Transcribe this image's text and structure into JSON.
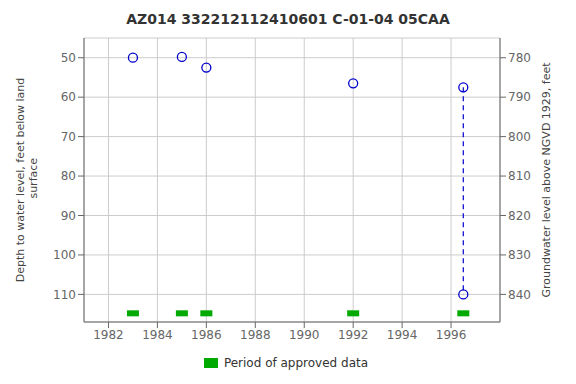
{
  "chart_data": {
    "type": "scatter",
    "title": "AZ014 332212112410601 C-01-04 05CAA",
    "y_label": "Depth to water level, feet below land\n surface",
    "y2_label": "Groundwater level above NGVD 1929, feet",
    "xlim": [
      1981,
      1998
    ],
    "xticks": [
      1982,
      1984,
      1986,
      1988,
      1990,
      1992,
      1994,
      1996
    ],
    "ylim": [
      117,
      45
    ],
    "yticks": [
      50,
      60,
      70,
      80,
      90,
      100,
      110
    ],
    "y2lim": [
      847,
      775
    ],
    "y2ticks": [
      780,
      790,
      800,
      810,
      820,
      830,
      840
    ],
    "grid": true,
    "legend": "bottom",
    "series": [
      {
        "type": "scatter",
        "marker": "circle",
        "color": "#0000cc",
        "x": [
          1983.0,
          1985.0,
          1986.0,
          1992.0,
          1996.5,
          1996.5
        ],
        "values": [
          50.0,
          49.8,
          52.5,
          56.5,
          57.5,
          110.0
        ]
      },
      {
        "type": "line",
        "line_style": "dashed",
        "color": "#0000cc",
        "x": [
          1996.5,
          1996.5
        ],
        "values": [
          57.5,
          110.0
        ]
      },
      {
        "name": "Period of approved data",
        "type": "scatter",
        "marker": "square",
        "color": "#00aa00",
        "x": [
          1983.0,
          1985.0,
          1986.0,
          1992.0,
          1996.5
        ],
        "values": [
          114.8,
          114.8,
          114.8,
          114.8,
          114.8
        ]
      }
    ]
  }
}
